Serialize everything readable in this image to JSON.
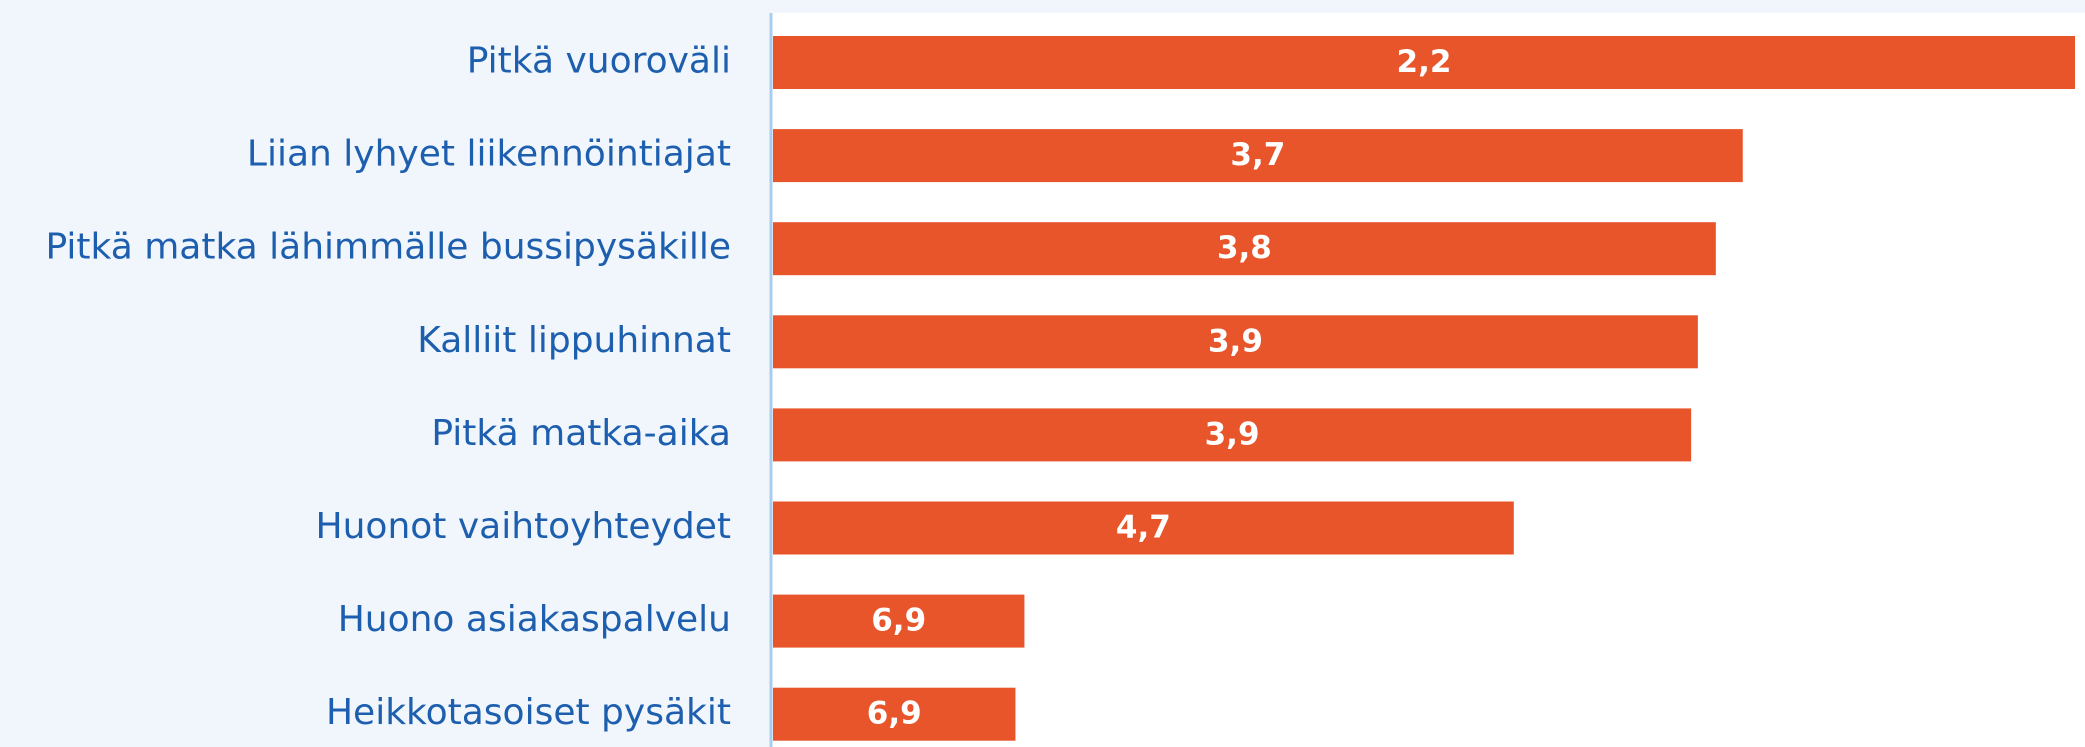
{
  "chart_data": {
    "type": "hbar",
    "categories": [
      "Pitkä vuoroväli",
      "Liian lyhyet liikennöintiajat",
      "Pitkä matka lähimmälle bussipysäkille",
      "Kalliit lippuhinnat",
      "Pitkä matka-aika",
      "Huonot vaihtoyhteydet",
      "Huono asiakaspalvelu",
      "Heikkotasoiset pysäkit"
    ],
    "values": [
      2.2,
      3.68,
      3.8,
      3.88,
      3.91,
      4.7,
      6.88,
      6.92
    ],
    "value_labels": [
      "2,2",
      "3,7",
      "3,8",
      "3,9",
      "3,9",
      "4,7",
      "6,9",
      "6,9"
    ],
    "color": "#e8552a",
    "xlim": [
      8,
      2.2
    ]
  }
}
